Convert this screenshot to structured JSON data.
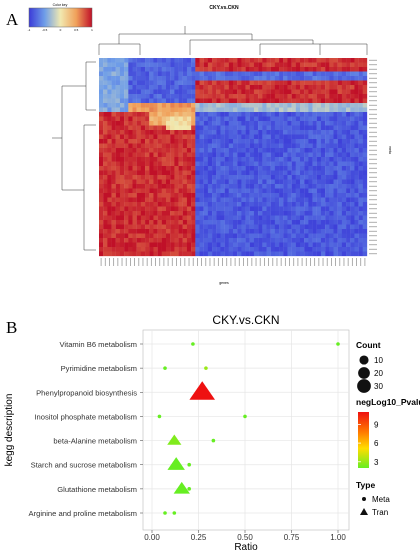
{
  "panel_a": {
    "label": "A",
    "title": "CKY.vs.CKN",
    "colorkey_title": "Color key",
    "colorkey_ticks": [
      "-1",
      "-0.5",
      "0",
      "0.5",
      "1"
    ],
    "xlabel": "genes",
    "ylabel": "meta"
  },
  "panel_b": {
    "label": "B",
    "title": "CKY.vs.CKN",
    "xlabel": "Ratio",
    "ylabel": "kegg description",
    "legend_count_title": "Count",
    "legend_count_items": [
      "10",
      "20",
      "30"
    ],
    "legend_p_title": "negLog10_Pvalue",
    "legend_p_ticks": [
      "9",
      "6",
      "3"
    ],
    "legend_type_title": "Type",
    "legend_type_items": [
      "Meta",
      "Tran"
    ]
  },
  "chart_data": [
    {
      "type": "heatmap",
      "title": "CKY.vs.CKN",
      "xlabel": "genes",
      "ylabel": "meta",
      "color_scale": {
        "min": -1,
        "max": 1,
        "colors": [
          "#3b3bd8",
          "#6f9ee8",
          "#f1e9b0",
          "#f0a05a",
          "#c01028"
        ]
      }
    },
    {
      "type": "scatter",
      "title": "CKY.vs.CKN",
      "xlabel": "Ratio",
      "ylabel": "kegg description",
      "xlim": [
        0,
        1
      ],
      "x_ticks": [
        "0.00",
        "0.25",
        "0.50",
        "0.75",
        "1.00"
      ],
      "categories": [
        "Vitamin B6 metabolism",
        "Pyrimidine metabolism",
        "Phenylpropanoid biosynthesis",
        "Inositol phosphate metabolism",
        "beta-Alanine metabolism",
        "Starch and sucrose metabolism",
        "Glutathione metabolism",
        "Arginine and proline metabolism"
      ],
      "series": [
        {
          "name": "Meta",
          "points": [
            {
              "category": "Vitamin B6 metabolism",
              "x": 0.22,
              "count": 1,
              "p": 2
            },
            {
              "category": "Vitamin B6 metabolism",
              "x": 1.0,
              "count": 1,
              "p": 2
            },
            {
              "category": "Pyrimidine metabolism",
              "x": 0.07,
              "count": 1,
              "p": 2
            },
            {
              "category": "Pyrimidine metabolism",
              "x": 0.29,
              "count": 1,
              "p": 3
            },
            {
              "category": "Inositol phosphate metabolism",
              "x": 0.04,
              "count": 1,
              "p": 2
            },
            {
              "category": "Inositol phosphate metabolism",
              "x": 0.5,
              "count": 1,
              "p": 2
            },
            {
              "category": "beta-Alanine metabolism",
              "x": 0.12,
              "count": 1,
              "p": 2
            },
            {
              "category": "beta-Alanine metabolism",
              "x": 0.33,
              "count": 1,
              "p": 2
            },
            {
              "category": "Starch and sucrose metabolism",
              "x": 0.2,
              "count": 1,
              "p": 2
            },
            {
              "category": "Glutathione metabolism",
              "x": 0.2,
              "count": 1,
              "p": 2
            },
            {
              "category": "Arginine and proline metabolism",
              "x": 0.07,
              "count": 1,
              "p": 2
            },
            {
              "category": "Arginine and proline metabolism",
              "x": 0.12,
              "count": 1,
              "p": 2
            }
          ]
        },
        {
          "name": "Tran",
          "points": [
            {
              "category": "Phenylpropanoid biosynthesis",
              "x": 0.27,
              "count": 30,
              "p": 11
            },
            {
              "category": "beta-Alanine metabolism",
              "x": 0.12,
              "count": 7,
              "p": 2.5
            },
            {
              "category": "Starch and sucrose metabolism",
              "x": 0.13,
              "count": 12,
              "p": 2
            },
            {
              "category": "Glutathione metabolism",
              "x": 0.16,
              "count": 10,
              "p": 2
            }
          ]
        }
      ],
      "color_scale": {
        "min": 2,
        "max": 11,
        "colors": [
          "#66ee22",
          "#ffdd00",
          "#ff7700",
          "#ee1111"
        ]
      }
    }
  ]
}
